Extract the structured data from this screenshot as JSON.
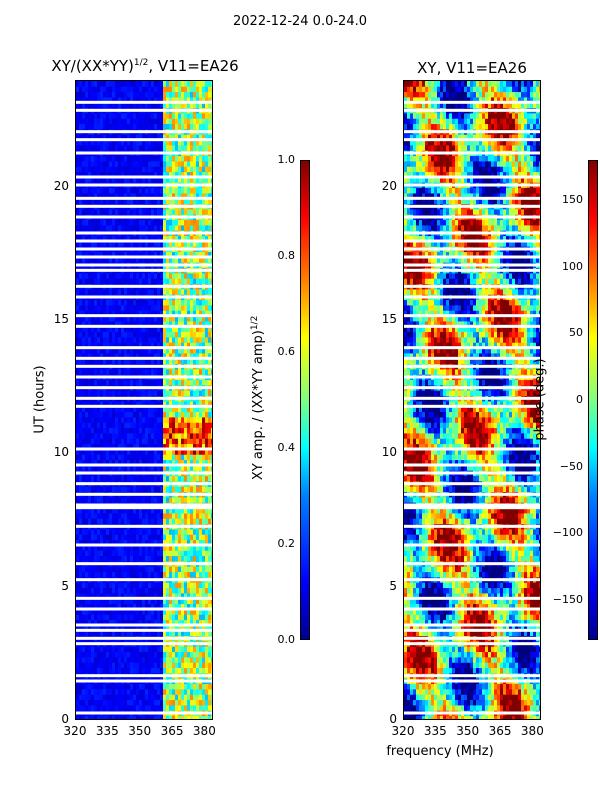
{
  "figure": {
    "suptitle": "2022-12-24 0.0-24.0"
  },
  "chart_data": [
    {
      "type": "heatmap",
      "title": "XY/(XX*YY)",
      "title_sup": "1/2",
      "title_suffix": ", V11=EA26",
      "xlabel": "",
      "ylabel": "UT (hours)",
      "xlim": [
        320,
        384
      ],
      "ylim": [
        0,
        24
      ],
      "xticks": [
        "320",
        "335",
        "350",
        "365",
        "380"
      ],
      "xtick_values": [
        320,
        335,
        350,
        365,
        380
      ],
      "yticks": [
        "0",
        "5",
        "10",
        "15",
        "20"
      ],
      "ytick_values": [
        0,
        5,
        10,
        15,
        20
      ],
      "colormap": "jet",
      "colorbar": {
        "label": "XY amp. / (XX*YY amp)",
        "label_sup": "1/2",
        "range": [
          0.0,
          1.0
        ],
        "ticks": [
          "0.0",
          "0.2",
          "0.4",
          "0.6",
          "0.8",
          "1.0"
        ],
        "tick_values": [
          0.0,
          0.2,
          0.4,
          0.6,
          0.8,
          1.0
        ]
      },
      "band_high_from_mhz": 361,
      "bright_rows_hours": [
        [
          9.9,
          11.4
        ]
      ],
      "flagged_rows_hours": [
        0.3,
        1.5,
        1.7,
        2.9,
        3.1,
        3.4,
        3.6,
        4.2,
        4.6,
        5.3,
        5.9,
        6.6,
        7.3,
        8.0,
        8.1,
        8.5,
        8.9,
        9.3,
        9.6,
        10.2,
        11.8,
        12.1,
        12.5,
        12.9,
        13.3,
        13.6,
        14.0,
        14.8,
        15.2,
        15.9,
        16.3,
        16.9,
        17.1,
        17.4,
        17.7,
        18.0,
        18.3,
        18.9,
        19.3,
        19.6,
        20.1,
        20.4,
        21.3,
        21.8,
        22.1,
        22.9,
        23.2
      ]
    },
    {
      "type": "heatmap",
      "title": "XY, V11=EA26",
      "xlabel": "frequency (MHz)",
      "ylabel": "",
      "xlim": [
        320,
        384
      ],
      "ylim": [
        0,
        24
      ],
      "xticks": [
        "320",
        "335",
        "350",
        "365",
        "380"
      ],
      "xtick_values": [
        320,
        335,
        350,
        365,
        380
      ],
      "yticks": [
        "0",
        "5",
        "10",
        "15",
        "20"
      ],
      "ytick_values": [
        0,
        5,
        10,
        15,
        20
      ],
      "colormap": "jet",
      "colorbar": {
        "label": "phase (deg.)",
        "range": [
          -180,
          180
        ],
        "ticks": [
          "−150",
          "−100",
          "−50",
          "0",
          "50",
          "100",
          "150"
        ],
        "tick_values": [
          -150,
          -100,
          -50,
          0,
          50,
          100,
          150
        ]
      },
      "flagged_rows_hours": [
        0.3,
        1.5,
        1.7,
        2.9,
        3.1,
        3.4,
        3.6,
        4.2,
        4.6,
        5.3,
        5.9,
        6.6,
        7.3,
        8.0,
        8.1,
        8.5,
        8.9,
        9.3,
        9.6,
        10.2,
        11.8,
        12.1,
        12.5,
        12.9,
        13.3,
        13.6,
        14.0,
        14.8,
        15.2,
        15.9,
        16.3,
        16.9,
        17.1,
        17.4,
        17.7,
        18.0,
        18.3,
        18.9,
        19.3,
        19.6,
        20.1,
        20.4,
        21.3,
        21.8,
        22.1,
        22.9,
        23.2
      ]
    }
  ]
}
